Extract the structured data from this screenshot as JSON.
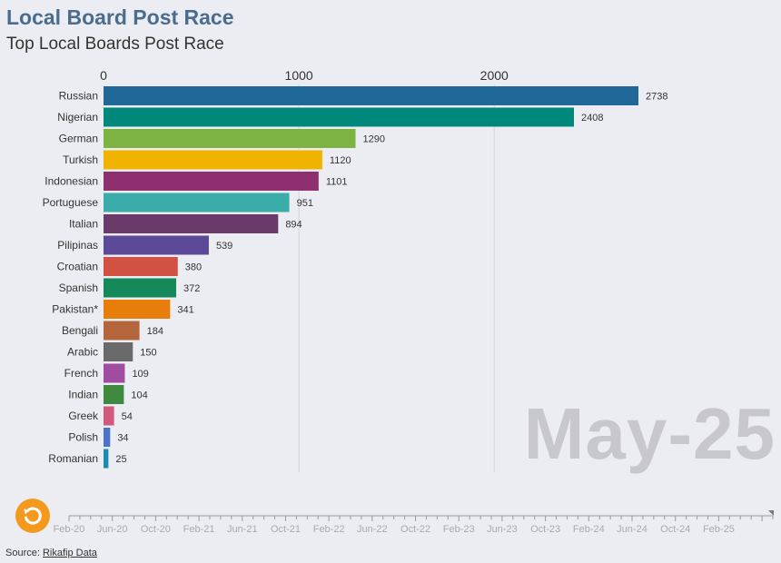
{
  "header": {
    "title": "Local Board Post Race",
    "subtitle": "Top Local Boards Post Race"
  },
  "current_period": "May-25",
  "footer": {
    "source_prefix": "Source:",
    "source_link": "Rikafip Data"
  },
  "timeline": {
    "labels": [
      "Feb-20",
      "Jun-20",
      "Oct-20",
      "Feb-21",
      "Jun-21",
      "Oct-21",
      "Feb-22",
      "Jun-22",
      "Oct-22",
      "Feb-23",
      "Jun-23",
      "Oct-23",
      "Feb-24",
      "Jun-24",
      "Oct-24",
      "Feb-25"
    ],
    "progress": 1.0
  },
  "controls": {
    "replay_icon": "replay-icon",
    "replay_color": "#f39a1e"
  },
  "chart_data": {
    "type": "bar",
    "orientation": "horizontal",
    "title": "Local Board Post Race",
    "subtitle": "Top Local Boards Post Race",
    "xlim": [
      0,
      2738
    ],
    "x_ticks": [
      0,
      1000,
      2000
    ],
    "x_axis_position": "top",
    "grid": true,
    "categories": [
      "Russian",
      "Nigerian",
      "German",
      "Turkish",
      "Indonesian",
      "Portuguese",
      "Italian",
      "Pilipinas",
      "Croatian",
      "Spanish",
      "Pakistan*",
      "Bengali",
      "Arabic",
      "French",
      "Indian",
      "Greek",
      "Polish",
      "Romanian"
    ],
    "values": [
      2738,
      2408,
      1290,
      1120,
      1101,
      951,
      894,
      539,
      380,
      372,
      341,
      184,
      150,
      109,
      104,
      54,
      34,
      25
    ],
    "colors": [
      "#1f6898",
      "#00897b",
      "#7cb342",
      "#f0b400",
      "#8e3070",
      "#3aacaa",
      "#6a3a6a",
      "#5c4a99",
      "#d15242",
      "#16895a",
      "#e77e0c",
      "#b5653c",
      "#6a6a6a",
      "#a04ca0",
      "#3f8a3f",
      "#d05a7e",
      "#4a74c8",
      "#1a8cb0"
    ]
  }
}
